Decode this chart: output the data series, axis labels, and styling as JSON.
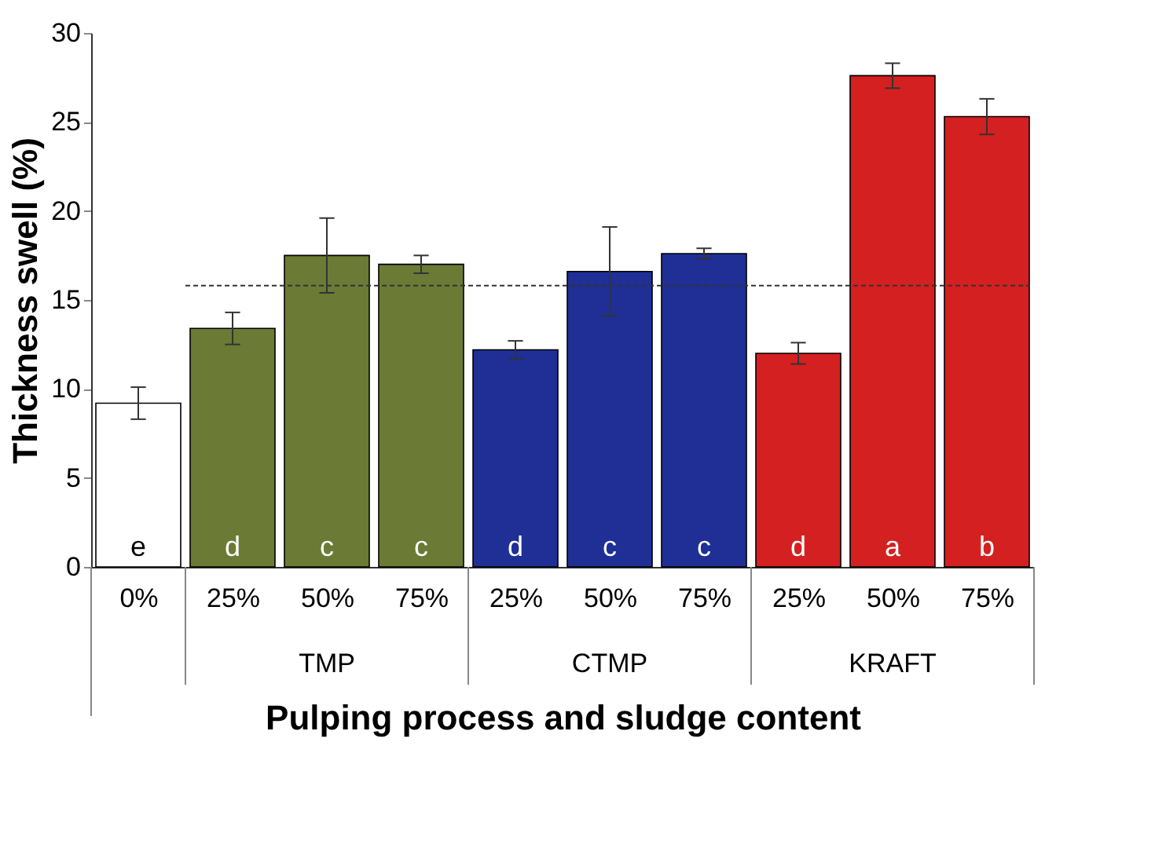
{
  "chart_data": {
    "type": "bar",
    "ylabel": "Thickness swell (%)",
    "xlabel": "Pulping process and sludge content",
    "categories": [
      "0%",
      "25%",
      "50%",
      "75%",
      "25%",
      "50%",
      "75%",
      "25%",
      "50%",
      "75%"
    ],
    "values": [
      9.2,
      13.4,
      17.5,
      17.0,
      12.2,
      16.6,
      17.6,
      12.0,
      27.6,
      25.3
    ],
    "errors": [
      0.9,
      0.9,
      2.1,
      0.5,
      0.5,
      2.5,
      0.3,
      0.6,
      0.7,
      1.0
    ],
    "colors": [
      "#ffffff",
      "#6b7a35",
      "#6b7a35",
      "#6b7a35",
      "#1f2f96",
      "#1f2f96",
      "#1f2f96",
      "#d42020",
      "#d42020",
      "#d42020"
    ],
    "annotations": [
      "e",
      "d",
      "c",
      "c",
      "d",
      "c",
      "c",
      "d",
      "a",
      "b",
      "TMP",
      "CTMP",
      "KRAFT"
    ],
    "ref_lines": [
      {
        "axis": "y",
        "value": 15.8,
        "line_style": "dashed"
      }
    ],
    "ylim": [
      0,
      30
    ],
    "yticks": [
      0,
      5,
      10,
      15,
      20,
      25,
      30
    ],
    "grid": false
  }
}
